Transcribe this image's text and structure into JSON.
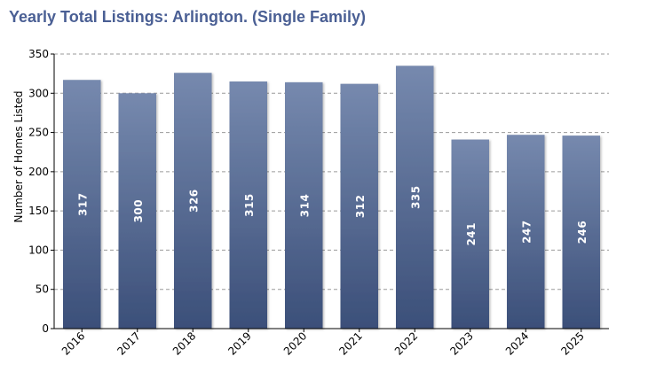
{
  "colors": {
    "title": "#4a5f94",
    "bar_top": "#7689ae",
    "bar_bottom": "#3b4f79",
    "grid": "#9a9a9a",
    "label": "#ffffff"
  },
  "chart_data": {
    "type": "bar",
    "title": "Yearly Total Listings: Arlington. (Single Family)",
    "xlabel": "",
    "ylabel": "Number of Homes Listed",
    "categories": [
      "2016",
      "2017",
      "2018",
      "2019",
      "2020",
      "2021",
      "2022",
      "2023",
      "2024",
      "2025"
    ],
    "values": [
      317,
      300,
      326,
      315,
      314,
      312,
      335,
      241,
      247,
      246
    ],
    "ylim": [
      0,
      350
    ],
    "yticks": [
      0,
      50,
      100,
      150,
      200,
      250,
      300,
      350
    ],
    "grid": true,
    "data_labels": true,
    "legend": "none"
  }
}
